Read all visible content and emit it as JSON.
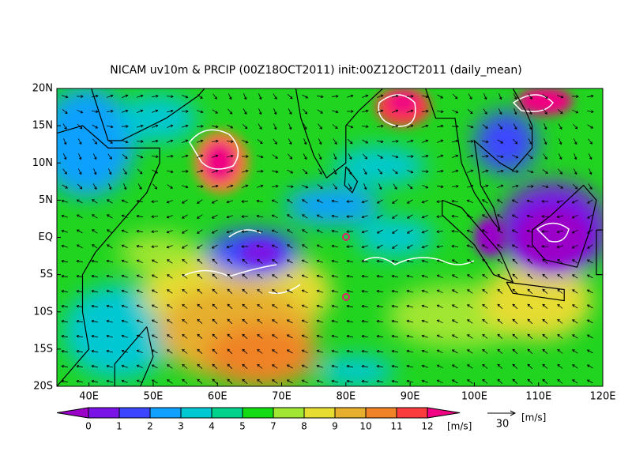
{
  "title": "NICAM uv10m & PRCIP (00Z18OCT2011) init:00Z12OCT2011 (daily_mean)",
  "lat_labels": [
    "20N",
    "15N",
    "10N",
    "5N",
    "EQ",
    "5S",
    "10S",
    "15S",
    "20S"
  ],
  "lon_labels": [
    "40E",
    "50E",
    "60E",
    "70E",
    "80E",
    "90E",
    "100E",
    "110E",
    "120E"
  ],
  "colorbar": {
    "labels": [
      0,
      1,
      2,
      3,
      4,
      5,
      7,
      8,
      9,
      10,
      11,
      12
    ],
    "colors": [
      "#9a00c8",
      "#7a14e6",
      "#3c46ff",
      "#10a0ff",
      "#00c8d2",
      "#00d28c",
      "#14dc14",
      "#a0e632",
      "#e6dc32",
      "#e6af2d",
      "#f08228",
      "#fa3c3c",
      "#f00082"
    ],
    "unit": "[m/s]"
  },
  "vector_ref": {
    "value": 30,
    "unit": "[m/s]"
  }
}
